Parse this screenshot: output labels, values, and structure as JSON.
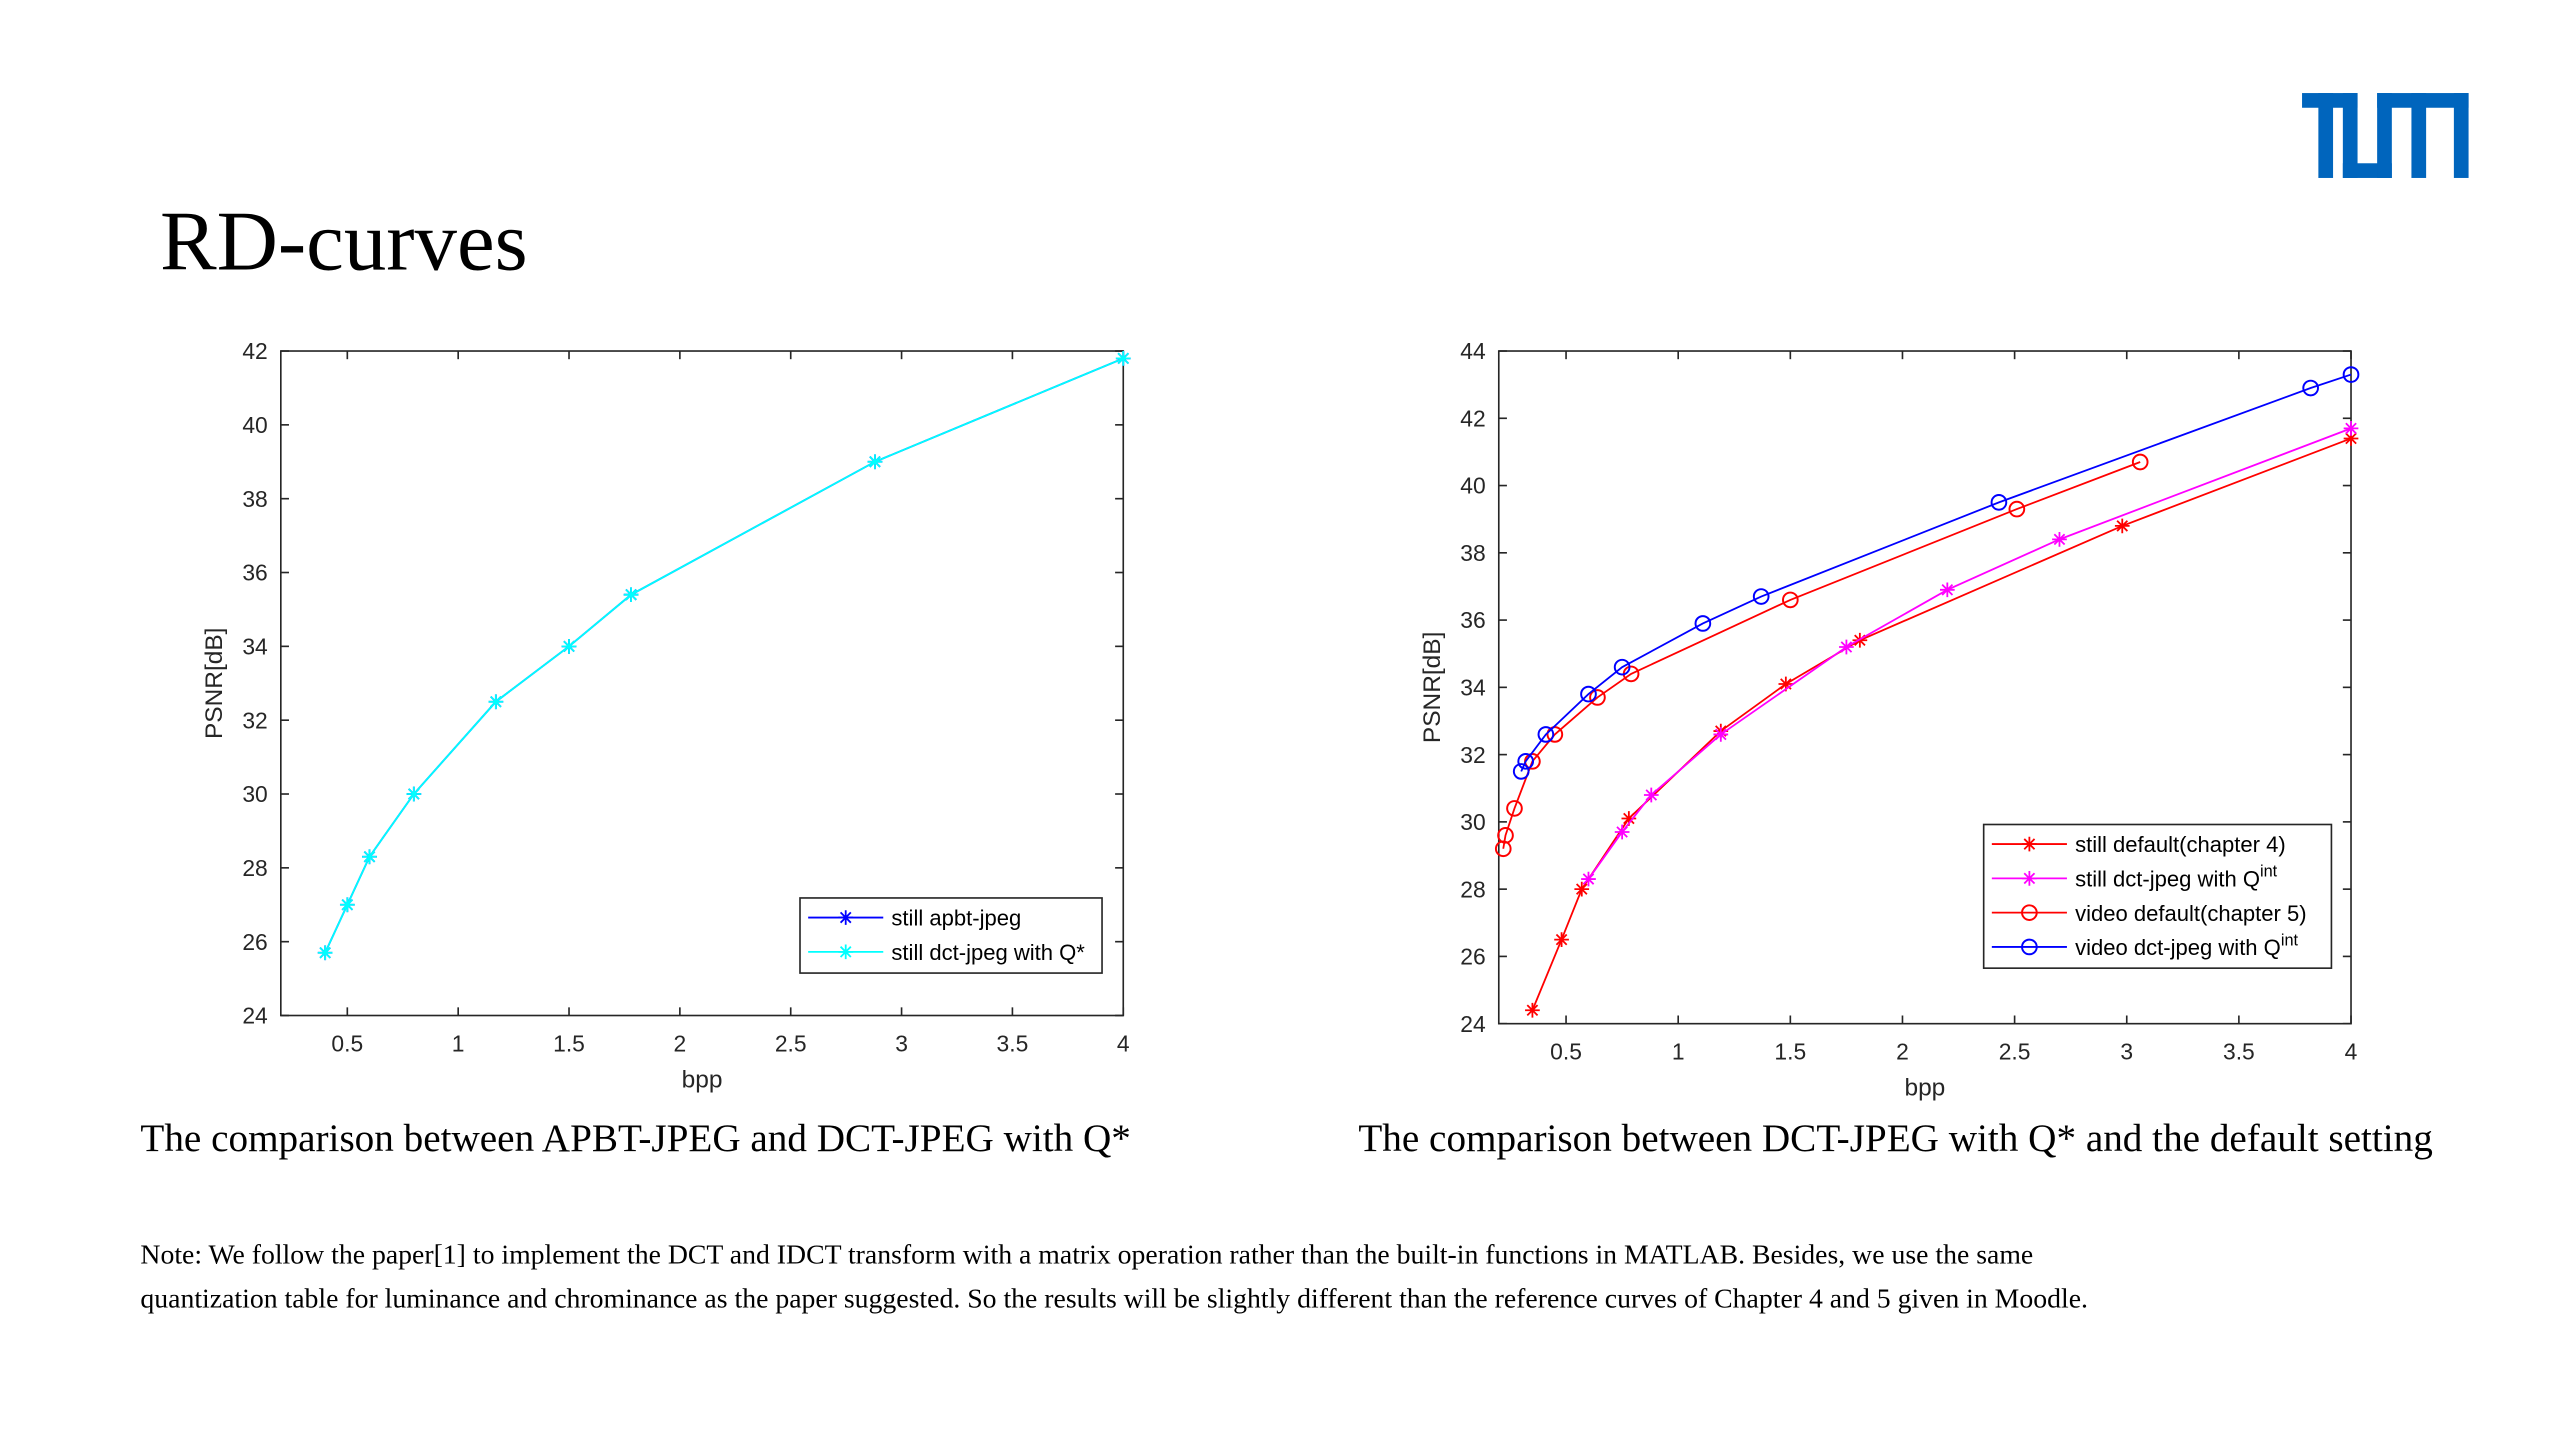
{
  "title": "RD-curves",
  "chart_data": [
    {
      "type": "line",
      "xlabel": "bpp",
      "ylabel": "PSNR[dB]",
      "xlim": [
        0.2,
        4
      ],
      "ylim": [
        24,
        42
      ],
      "xticks": [
        0.5,
        1,
        1.5,
        2,
        2.5,
        3,
        3.5,
        4
      ],
      "yticks": [
        24,
        26,
        28,
        30,
        32,
        34,
        36,
        38,
        40,
        42
      ],
      "legend": "lower right",
      "series": [
        {
          "name": "still apbt-jpeg",
          "color": "#0000ff",
          "marker": "*",
          "x": [
            0.4,
            0.5,
            0.6,
            0.8,
            1.17,
            1.5,
            1.78,
            2.88,
            4
          ],
          "values": [
            25.7,
            27,
            28.3,
            30,
            32.5,
            34,
            35.4,
            39,
            41.8
          ]
        },
        {
          "name": "still dct-jpeg with Q*",
          "color": "#00ffff",
          "marker": "*",
          "x": [
            0.4,
            0.5,
            0.6,
            0.8,
            1.17,
            1.5,
            1.78,
            2.88,
            4
          ],
          "values": [
            25.7,
            27,
            28.3,
            30,
            32.5,
            34,
            35.4,
            39,
            41.8
          ]
        }
      ]
    },
    {
      "type": "line",
      "xlabel": "bpp",
      "ylabel": "PSNR[dB]",
      "xlim": [
        0.2,
        4
      ],
      "ylim": [
        24,
        44
      ],
      "xticks": [
        0.5,
        1,
        1.5,
        2,
        2.5,
        3,
        3.5,
        4
      ],
      "yticks": [
        24,
        26,
        28,
        30,
        32,
        34,
        36,
        38,
        40,
        42,
        44
      ],
      "legend": "lower right",
      "series": [
        {
          "name": "still default(chapter 4)",
          "color": "#ff0000",
          "marker": "*",
          "x": [
            0.35,
            0.48,
            0.57,
            0.78,
            1.19,
            1.48,
            1.81,
            2.98,
            4
          ],
          "values": [
            24.4,
            26.5,
            28,
            30.1,
            32.7,
            34.1,
            35.4,
            38.8,
            41.4
          ]
        },
        {
          "name": "still dct-jpeg with Q",
          "name_sup": "int",
          "color": "#ff00ff",
          "marker": "*",
          "x": [
            0.6,
            0.75,
            0.88,
            1.19,
            1.75,
            2.2,
            2.7,
            4
          ],
          "values": [
            28.3,
            29.7,
            30.8,
            32.6,
            35.2,
            36.9,
            38.4,
            41.7
          ]
        },
        {
          "name": "video default(chapter 5)",
          "color": "#ff0000",
          "marker": "o",
          "x": [
            0.22,
            0.23,
            0.27,
            0.35,
            0.45,
            0.64,
            0.79,
            1.5,
            2.51,
            3.06
          ],
          "values": [
            29.2,
            29.6,
            30.4,
            31.8,
            32.6,
            33.7,
            34.4,
            36.6,
            39.3,
            40.7
          ]
        },
        {
          "name": "video dct-jpeg with Q",
          "name_sup": "int",
          "color": "#0000ff",
          "marker": "o",
          "x": [
            0.3,
            0.32,
            0.41,
            0.6,
            0.75,
            1.11,
            1.37,
            2.43,
            3.82,
            4
          ],
          "values": [
            31.5,
            31.8,
            32.6,
            33.8,
            34.6,
            35.9,
            36.7,
            39.5,
            42.9,
            43.3
          ]
        }
      ]
    }
  ],
  "captions": [
    "The comparison between APBT-JPEG and DCT-JPEG with Q*",
    "The comparison between  DCT-JPEG with Q* and the default setting"
  ],
  "note": [
    "Note: We follow the paper[1] to implement the DCT and IDCT transform with a matrix operation rather than the built-in functions in MATLAB. Besides, we use the same",
    "quantization table for luminance and chrominance as the paper suggested. So the results will be slightly different than the reference curves of Chapter 4 and 5 given in Moodle."
  ]
}
